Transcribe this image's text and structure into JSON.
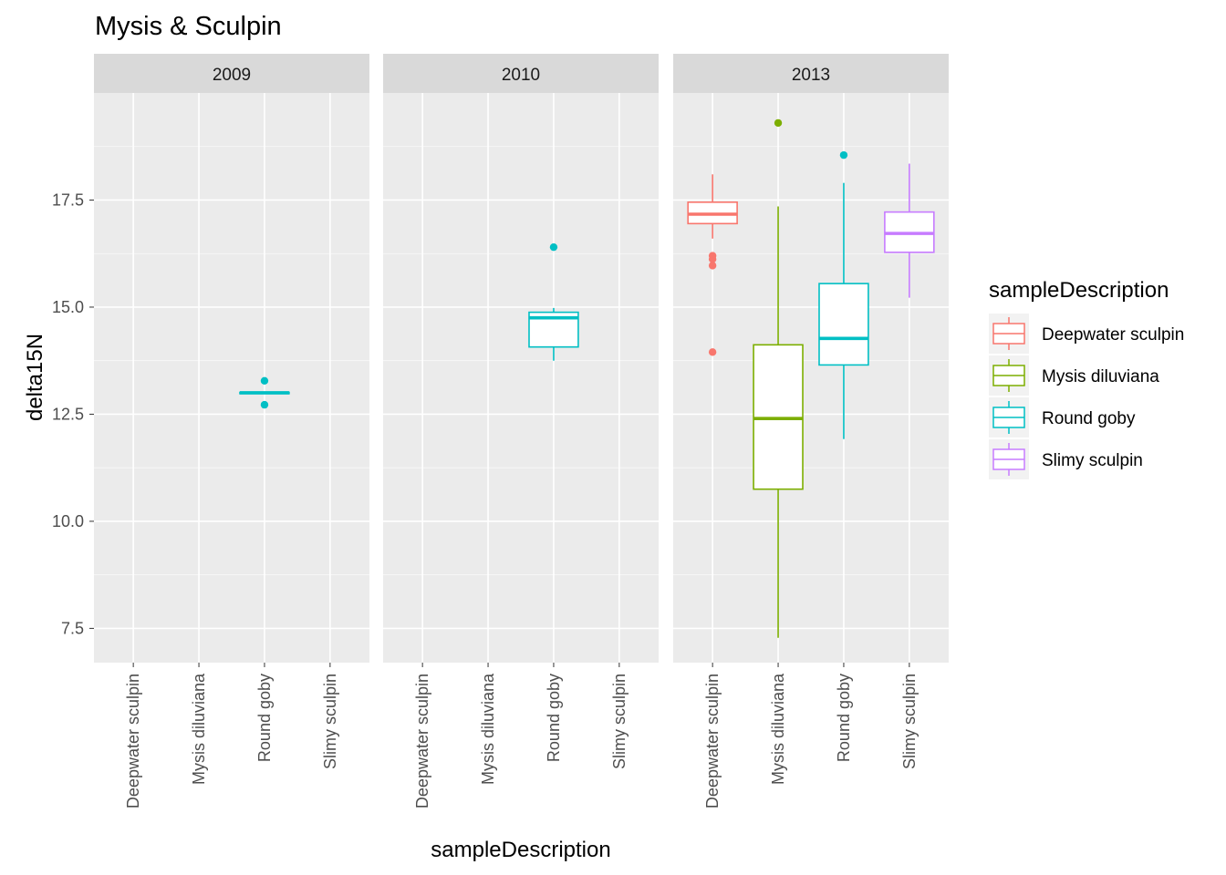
{
  "chart_data": {
    "type": "boxplot",
    "title": "Mysis & Sculpin",
    "xlabel": "sampleDescription",
    "ylabel": "delta15N",
    "ylim": [
      6.7,
      20.0
    ],
    "y_ticks": [
      7.5,
      10.0,
      12.5,
      15.0,
      17.5
    ],
    "y_tick_labels": [
      "7.5",
      "10.0",
      "12.5",
      "15.0",
      "17.5"
    ],
    "categories": [
      "Deepwater sculpin",
      "Mysis diluviana",
      "Round goby",
      "Slimy sculpin"
    ],
    "grid": true,
    "legend": {
      "title": "sampleDescription",
      "position": "right",
      "entries": [
        "Deepwater sculpin",
        "Mysis diluviana",
        "Round goby",
        "Slimy sculpin"
      ]
    },
    "colors": {
      "Deepwater sculpin": "#F8766D",
      "Mysis diluviana": "#7CAE00",
      "Round goby": "#00BFC4",
      "Slimy sculpin": "#C77CFF",
      "panel_bg": "#EBEBEB",
      "strip_bg": "#D9D9D9"
    },
    "facets": [
      {
        "label": "2009",
        "boxes": [
          {
            "category": "Round goby",
            "lower_whisker": 12.98,
            "q1": 12.98,
            "median": 13.0,
            "q3": 13.01,
            "upper_whisker": 13.01,
            "outliers": [
              13.28,
              12.72
            ]
          }
        ]
      },
      {
        "label": "2010",
        "boxes": [
          {
            "category": "Round goby",
            "lower_whisker": 13.75,
            "q1": 14.07,
            "median": 14.75,
            "q3": 14.88,
            "upper_whisker": 14.98,
            "outliers": [
              16.4
            ]
          }
        ]
      },
      {
        "label": "2013",
        "boxes": [
          {
            "category": "Deepwater sculpin",
            "lower_whisker": 16.6,
            "q1": 16.95,
            "median": 17.17,
            "q3": 17.45,
            "upper_whisker": 18.1,
            "outliers": [
              16.2,
              16.12,
              15.97,
              13.95
            ]
          },
          {
            "category": "Mysis diluviana",
            "lower_whisker": 7.28,
            "q1": 10.75,
            "median": 12.4,
            "q3": 14.12,
            "upper_whisker": 17.35,
            "outliers": [
              19.3
            ]
          },
          {
            "category": "Round goby",
            "lower_whisker": 11.92,
            "q1": 13.65,
            "median": 14.27,
            "q3": 15.55,
            "upper_whisker": 17.9,
            "outliers": [
              18.55
            ]
          },
          {
            "category": "Slimy sculpin",
            "lower_whisker": 15.22,
            "q1": 16.28,
            "median": 16.72,
            "q3": 17.22,
            "upper_whisker": 18.35,
            "outliers": []
          }
        ]
      }
    ]
  }
}
